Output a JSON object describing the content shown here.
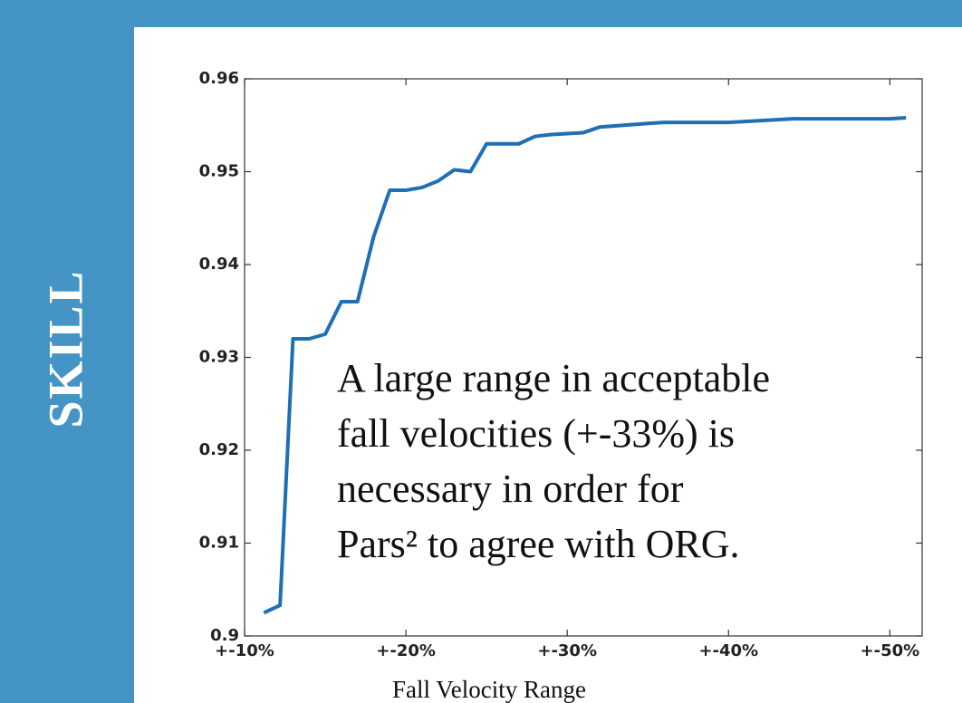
{
  "chart_data": {
    "type": "line",
    "ylabel": "SKILL",
    "xlabel": "Fall Velocity Range",
    "annotation": [
      "A large range in acceptable",
      "fall velocities (+-33%) is",
      "necessary in order for",
      "Pars² to  agree with ORG."
    ],
    "x": [
      11.2,
      12.2,
      13.0,
      14.0,
      15.0,
      16.0,
      17.0,
      18.0,
      19.0,
      20.0,
      21.0,
      22.0,
      23.0,
      24.0,
      25.0,
      26.0,
      27.0,
      28.0,
      29.0,
      30.0,
      31.0,
      32.0,
      33.5,
      35.0,
      36.0,
      38.0,
      40.0,
      42.0,
      44.0,
      46.0,
      48.0,
      50.0,
      51.0
    ],
    "series": [
      {
        "color": "#1f6fb4",
        "values": [
          0.9025,
          0.9033,
          0.932,
          0.932,
          0.9325,
          0.936,
          0.936,
          0.943,
          0.948,
          0.948,
          0.9483,
          0.949,
          0.9502,
          0.95,
          0.953,
          0.953,
          0.953,
          0.9538,
          0.954,
          0.9541,
          0.9542,
          0.9548,
          0.955,
          0.9552,
          0.9553,
          0.9553,
          0.9553,
          0.9555,
          0.9557,
          0.9557,
          0.9557,
          0.9557,
          0.9558
        ]
      }
    ],
    "xlim": [
      10,
      52
    ],
    "xticks": [
      {
        "value": 10,
        "label": "+-10%"
      },
      {
        "value": 20,
        "label": "+-20%"
      },
      {
        "value": 30,
        "label": "+-30%"
      },
      {
        "value": 40,
        "label": "+-40%"
      },
      {
        "value": 50,
        "label": "+-50%"
      }
    ],
    "ylim": [
      0.9,
      0.96
    ],
    "yticks": [
      0.9,
      0.91,
      0.92,
      0.93,
      0.94,
      0.95,
      0.96
    ]
  }
}
